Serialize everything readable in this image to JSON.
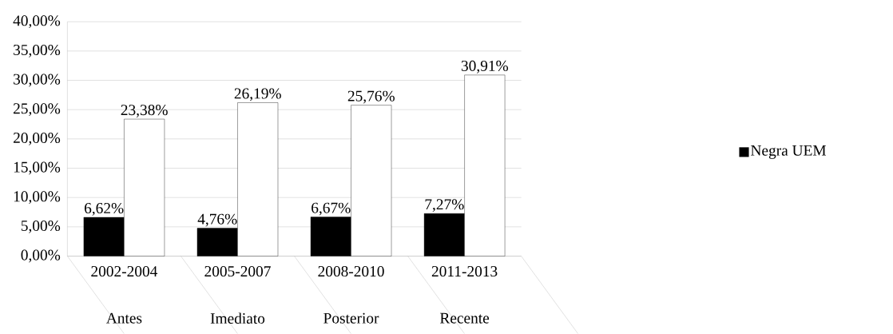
{
  "chart_data": {
    "type": "bar",
    "categories": [
      "2002-2004",
      "2005-2007",
      "2008-2010",
      "2011-2013"
    ],
    "annotations": [
      "Antes",
      "Imediato",
      "Posterior",
      "Recente"
    ],
    "series": [
      {
        "name": "Negra UEM",
        "color": "#000000",
        "values": [
          6.62,
          4.76,
          6.67,
          7.27
        ],
        "value_labels": [
          "6,62%",
          "4,76%",
          "6,67%",
          "7,27%"
        ]
      },
      {
        "color": "#ffffff",
        "values": [
          23.38,
          26.19,
          25.76,
          30.91
        ],
        "value_labels": [
          "23,38%",
          "26,19%",
          "25,76%",
          "30,91%"
        ]
      }
    ],
    "ylim": [
      0,
      40
    ],
    "yticks": [
      {
        "value": 0,
        "label": "0,00%"
      },
      {
        "value": 5,
        "label": "5,00%"
      },
      {
        "value": 10,
        "label": "10,00%"
      },
      {
        "value": 15,
        "label": "15,00%"
      },
      {
        "value": 20,
        "label": "20,00%"
      },
      {
        "value": 25,
        "label": "25,00%"
      },
      {
        "value": 30,
        "label": "30,00%"
      },
      {
        "value": 35,
        "label": "35,00%"
      },
      {
        "value": 40,
        "label": "40,00%"
      }
    ],
    "grid": "y",
    "legend": "right"
  }
}
